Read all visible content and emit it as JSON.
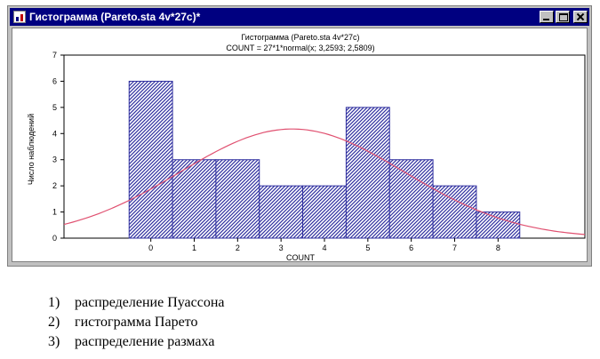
{
  "window": {
    "title": "Гистограмма (Pareto.sta 4v*27c)*",
    "app_icon": "statistica-app-icon",
    "controls": [
      "minimize-icon",
      "maximize-icon",
      "close-icon"
    ]
  },
  "chart_data": {
    "type": "bar",
    "title": "Гистограмма (Pareto.sta 4v*27c)",
    "subtitle": "COUNT = 27*1*normal(x; 3,2593; 2,5809)",
    "xlabel": "COUNT",
    "ylabel": "Число наблюдений",
    "categories": [
      "0",
      "1",
      "2",
      "3",
      "4",
      "5",
      "6",
      "7",
      "8"
    ],
    "values": [
      6,
      3,
      3,
      2,
      2,
      5,
      3,
      2,
      1
    ],
    "yticks": [
      "0",
      "1",
      "2",
      "3",
      "4",
      "5",
      "6",
      "7"
    ],
    "ylim": [
      0,
      7
    ],
    "xlim": [
      -2,
      10
    ],
    "grid": false,
    "legend": "none",
    "bar_fill": "#3030a0",
    "bar_hatch": "diagonal",
    "curve": {
      "type": "normal",
      "n": 27,
      "binwidth": 1,
      "mean": 3.2593,
      "sd": 2.5809,
      "color": "#e05070"
    }
  },
  "answers": [
    {
      "num": "1)",
      "text": "распределение Пуассона"
    },
    {
      "num": "2)",
      "text": "гистограмма Парето"
    },
    {
      "num": "3)",
      "text": "распределение размаха"
    }
  ]
}
